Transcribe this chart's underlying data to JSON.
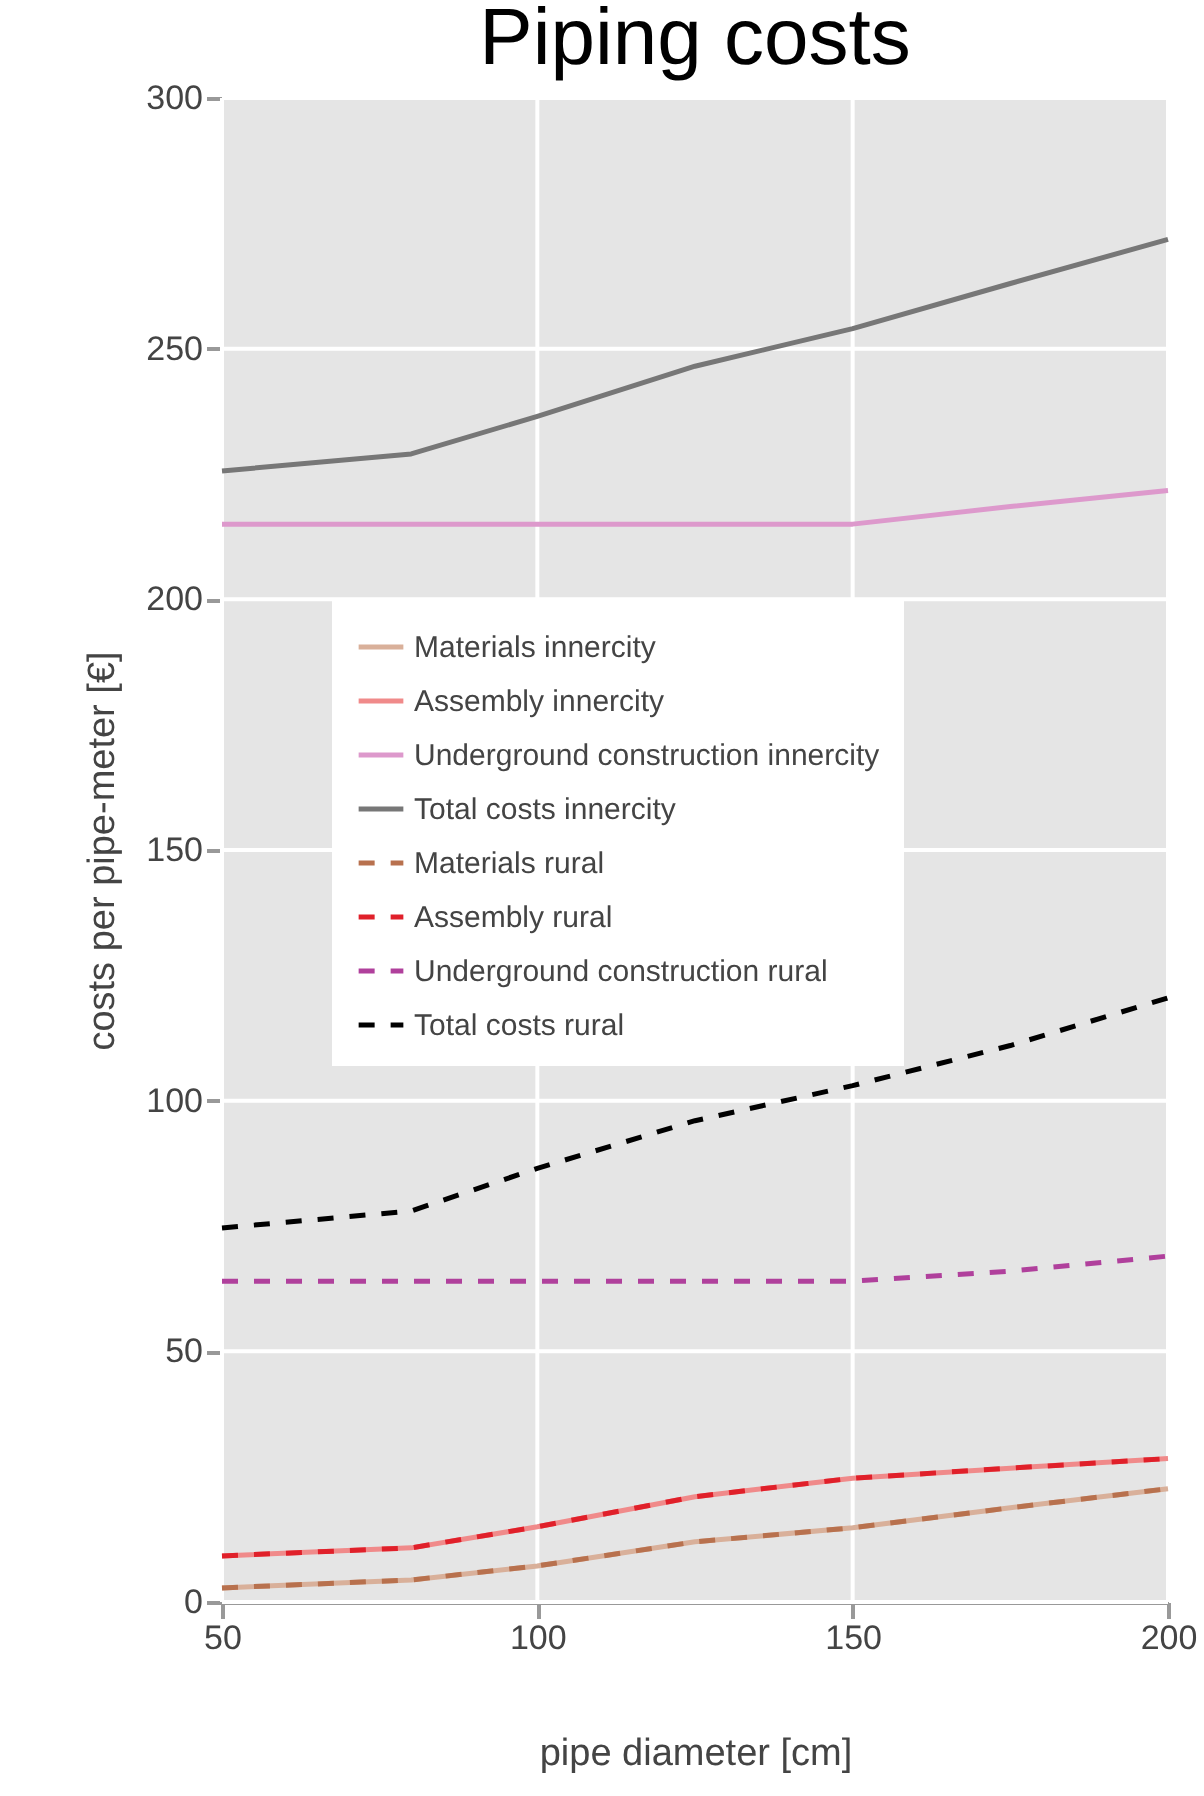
{
  "chart_data": {
    "type": "line",
    "title": "Piping costs",
    "xlabel": "pipe diameter [cm]",
    "ylabel": "costs per pipe-meter [€]",
    "x": [
      50,
      80,
      100,
      125,
      150,
      175,
      200
    ],
    "series": [
      {
        "name": "Materials innercity",
        "color": "#d9b09a",
        "line_style": "solid",
        "values": [
          2.8,
          4.4,
          7.2,
          12,
          14.8,
          18.8,
          22.6
        ]
      },
      {
        "name": "Assembly innercity",
        "color": "#f08a8a",
        "line_style": "solid",
        "values": [
          9.2,
          10.8,
          15,
          21,
          24.7,
          26.7,
          28.6
        ]
      },
      {
        "name": "Underground construction innercity",
        "color": "#dd99cc",
        "line_style": "solid",
        "values": [
          215,
          215,
          215,
          215,
          215,
          218.5,
          221.7
        ]
      },
      {
        "name": "Total costs innercity",
        "color": "#777777",
        "line_style": "solid",
        "values": [
          225.6,
          229,
          236.5,
          246.5,
          254,
          263,
          271.8
        ]
      },
      {
        "name": "Materials rural",
        "color": "#b8714e",
        "line_style": "dashed",
        "values": [
          2.8,
          4.4,
          7.2,
          12,
          14.8,
          18.8,
          22.6
        ]
      },
      {
        "name": "Assembly rural",
        "color": "#e0202a",
        "line_style": "dashed",
        "values": [
          9.2,
          10.8,
          15,
          21,
          24.7,
          26.7,
          28.6
        ]
      },
      {
        "name": "Underground construction rural",
        "color": "#b0409c",
        "line_style": "dashed",
        "values": [
          64,
          64,
          64,
          64,
          64,
          66,
          69
        ]
      },
      {
        "name": "Total costs rural",
        "color": "#000000",
        "line_style": "dashed",
        "values": [
          74.6,
          78,
          86.5,
          96,
          103,
          111,
          120.5
        ]
      }
    ],
    "xlim": [
      50,
      200
    ],
    "xticks": [
      50,
      100,
      150,
      200
    ],
    "ylim": [
      0,
      300
    ],
    "yticks": [
      0,
      50,
      100,
      150,
      200,
      250,
      300
    ],
    "grid": true,
    "legend": "left",
    "marker": "none"
  }
}
